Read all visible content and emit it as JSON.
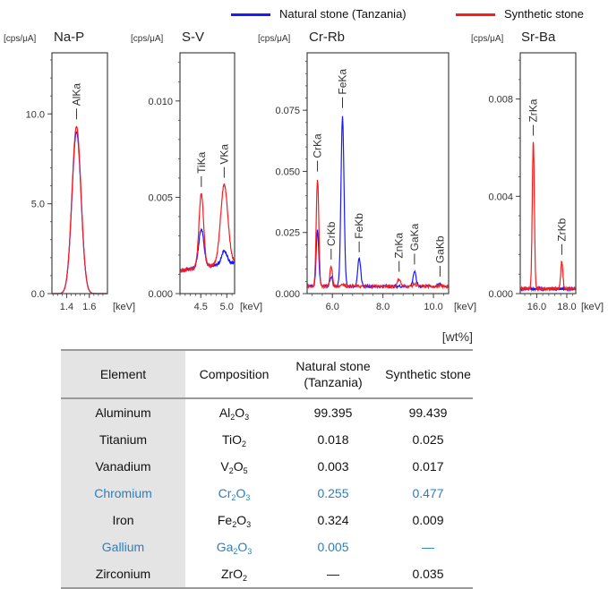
{
  "legend": [
    {
      "name": "Natural stone (Tanzania)",
      "color": "#1a1aff"
    },
    {
      "name": "Synthetic stone",
      "color": "#ff1a1a"
    }
  ],
  "chart_data": [
    {
      "type": "line",
      "title": "Na-P",
      "ylabel": "[cps/μA]",
      "xlabel": "[keV]",
      "xlim": [
        1.27,
        1.76
      ],
      "ylim": [
        0,
        13.4
      ],
      "xticks": [
        1.4,
        1.6
      ],
      "xtick_labels": [
        "1.4",
        "1.6"
      ],
      "yticks": [
        0,
        5,
        10
      ],
      "ytick_labels": [
        "0.0",
        "5.0",
        "10.0"
      ],
      "peaks": [
        {
          "label": "AlKa",
          "x": 1.487
        }
      ],
      "series": [
        {
          "name": "Natural stone (Tanzania)",
          "peaks": [
            {
              "x": 1.487,
              "y": 9.0,
              "w": 0.04
            }
          ],
          "baseline": 0.0
        },
        {
          "name": "Synthetic stone",
          "peaks": [
            {
              "x": 1.487,
              "y": 9.3,
              "w": 0.04
            }
          ],
          "baseline": 0.0
        }
      ]
    },
    {
      "type": "line",
      "title": "S-V",
      "ylabel": "[cps/μA]",
      "xlabel": "[keV]",
      "xlim": [
        4.1,
        5.15
      ],
      "ylim": [
        0,
        0.0125
      ],
      "xticks": [
        4.5,
        5.0
      ],
      "xtick_labels": [
        "4.5",
        "5.0"
      ],
      "yticks": [
        0,
        0.005,
        0.01
      ],
      "ytick_labels": [
        "0.000",
        "0.005",
        "0.010"
      ],
      "peaks": [
        {
          "label": "TiKa",
          "x": 4.51
        },
        {
          "label": "VKa",
          "x": 4.95
        }
      ],
      "series": [
        {
          "name": "Natural stone (Tanzania)",
          "peaks": [
            {
              "x": 4.51,
              "y": 0.002,
              "w": 0.05
            },
            {
              "x": 4.95,
              "y": 0.0007,
              "w": 0.05
            }
          ],
          "baseline": 0.0012
        },
        {
          "name": "Synthetic stone",
          "peaks": [
            {
              "x": 4.51,
              "y": 0.0038,
              "w": 0.045
            },
            {
              "x": 4.95,
              "y": 0.0041,
              "w": 0.07
            }
          ],
          "baseline": 0.0012
        }
      ]
    },
    {
      "type": "line",
      "title": "Cr-Rb",
      "ylabel": "[cps/μA]",
      "xlabel": "[keV]",
      "xlim": [
        5.0,
        10.6
      ],
      "ylim": [
        0,
        0.0985
      ],
      "xticks": [
        6.0,
        8.0,
        10.0
      ],
      "xtick_labels": [
        "6.0",
        "8.0",
        "10.0"
      ],
      "yticks": [
        0,
        0.025,
        0.05,
        0.075
      ],
      "ytick_labels": [
        "0.000",
        "0.025",
        "0.050",
        "0.075"
      ],
      "peaks": [
        {
          "label": "CrKa",
          "x": 5.41
        },
        {
          "label": "CrKb",
          "x": 5.95
        },
        {
          "label": "FeKa",
          "x": 6.4
        },
        {
          "label": "FeKb",
          "x": 7.06
        },
        {
          "label": "ZnKa",
          "x": 8.64
        },
        {
          "label": "GaKa",
          "x": 9.25
        },
        {
          "label": "GaKb",
          "x": 10.26
        }
      ],
      "series": [
        {
          "name": "Natural stone (Tanzania)",
          "peaks": [
            {
              "x": 5.41,
              "y": 0.023,
              "w": 0.05
            },
            {
              "x": 5.95,
              "y": 0.004,
              "w": 0.05
            },
            {
              "x": 6.4,
              "y": 0.07,
              "w": 0.06
            },
            {
              "x": 7.06,
              "y": 0.011,
              "w": 0.06
            },
            {
              "x": 9.25,
              "y": 0.006,
              "w": 0.06
            },
            {
              "x": 10.26,
              "y": 0.001,
              "w": 0.06
            }
          ],
          "baseline": 0.003
        },
        {
          "name": "Synthetic stone",
          "peaks": [
            {
              "x": 5.41,
              "y": 0.044,
              "w": 0.05
            },
            {
              "x": 5.95,
              "y": 0.008,
              "w": 0.05
            },
            {
              "x": 6.4,
              "y": 0.001,
              "w": 0.06
            },
            {
              "x": 8.64,
              "y": 0.003,
              "w": 0.06
            },
            {
              "x": 9.25,
              "y": 0.001,
              "w": 0.06
            }
          ],
          "baseline": 0.003
        }
      ]
    },
    {
      "type": "line",
      "title": "Sr-Ba",
      "ylabel": "[cps/μA]",
      "xlabel": "[keV]",
      "xlim": [
        14.9,
        18.6
      ],
      "ylim": [
        0,
        0.0099
      ],
      "xticks": [
        16.0,
        18.0
      ],
      "xtick_labels": [
        "16.0",
        "18.0"
      ],
      "yticks": [
        0,
        0.004,
        0.008
      ],
      "ytick_labels": [
        "0.000",
        "0.004",
        "0.008"
      ],
      "peaks": [
        {
          "label": "ZrKa",
          "x": 15.77
        },
        {
          "label": "ZrKb",
          "x": 17.67
        }
      ],
      "series": [
        {
          "name": "Natural stone (Tanzania)",
          "peaks": [],
          "baseline": 0.0002
        },
        {
          "name": "Synthetic stone",
          "peaks": [
            {
              "x": 15.77,
              "y": 0.006,
              "w": 0.07
            },
            {
              "x": 17.67,
              "y": 0.0011,
              "w": 0.07
            }
          ],
          "baseline": 0.0002
        }
      ]
    }
  ],
  "table": {
    "unit": "[wt%]",
    "headers": [
      "Element",
      "Composition",
      "Natural stone\n(Tanzania)",
      "Synthetic stone"
    ],
    "header_nat_line1": "Natural stone",
    "header_nat_line2": "(Tanzania)",
    "highlight_color": "#2a7fc1",
    "rows": [
      {
        "element": "Aluminum",
        "formula": [
          [
            "Al",
            ""
          ],
          [
            "2",
            "sub"
          ],
          [
            "O",
            ""
          ],
          [
            "3",
            "sub"
          ]
        ],
        "natural": "99.395",
        "synthetic": "99.439",
        "highlight": false
      },
      {
        "element": "Titanium",
        "formula": [
          [
            "TiO",
            ""
          ],
          [
            "2",
            "sub"
          ]
        ],
        "natural": "0.018",
        "synthetic": "0.025",
        "highlight": false
      },
      {
        "element": "Vanadium",
        "formula": [
          [
            "V",
            ""
          ],
          [
            "2",
            "sub"
          ],
          [
            "O",
            ""
          ],
          [
            "5",
            "sub"
          ]
        ],
        "natural": "0.003",
        "synthetic": "0.017",
        "highlight": false
      },
      {
        "element": "Chromium",
        "formula": [
          [
            "Cr",
            ""
          ],
          [
            "2",
            "sub"
          ],
          [
            "O",
            ""
          ],
          [
            "3",
            "sub"
          ]
        ],
        "natural": "0.255",
        "synthetic": "0.477",
        "highlight": true
      },
      {
        "element": "Iron",
        "formula": [
          [
            "Fe",
            ""
          ],
          [
            "2",
            "sub"
          ],
          [
            "O",
            ""
          ],
          [
            "3",
            "sub"
          ]
        ],
        "natural": "0.324",
        "synthetic": "0.009",
        "highlight": false
      },
      {
        "element": "Gallium",
        "formula": [
          [
            "Ga",
            ""
          ],
          [
            "2",
            "sub"
          ],
          [
            "O",
            ""
          ],
          [
            "3",
            "sub"
          ]
        ],
        "natural": "0.005",
        "synthetic": "—",
        "highlight": true
      },
      {
        "element": "Zirconium",
        "formula": [
          [
            "ZrO",
            ""
          ],
          [
            "2",
            "sub"
          ]
        ],
        "natural": "—",
        "synthetic": "0.035",
        "highlight": false
      }
    ]
  }
}
